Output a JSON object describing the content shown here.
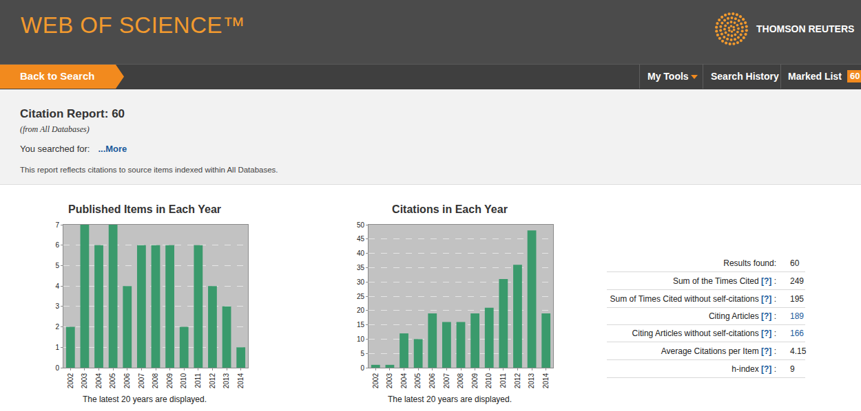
{
  "header": {
    "brand": "WEB OF SCIENCE™",
    "company": "THOMSON REUTERS"
  },
  "nav": {
    "back": "Back to Search",
    "items": [
      "My Tools",
      "Search History",
      "Marked List"
    ],
    "badge": 60
  },
  "report": {
    "title": "Citation Report: 60",
    "subtitle": "(from All Databases)",
    "search_label": "You searched for:",
    "more": "...More",
    "note": "This report reflects citations to source items indexed within All Databases."
  },
  "chart_data": [
    {
      "type": "bar",
      "title": "Published Items in Each Year",
      "categories": [
        "2002",
        "2003",
        "2004",
        "2005",
        "2006",
        "2007",
        "2008",
        "2009",
        "2010",
        "2011",
        "2012",
        "2013",
        "2014"
      ],
      "values": [
        2,
        7,
        6,
        7,
        4,
        6,
        6,
        6,
        2,
        6,
        4,
        3,
        1
      ],
      "color": "#3a9a6c",
      "ylim": [
        0,
        7
      ],
      "yticks": [
        0,
        1,
        2,
        3,
        4,
        5,
        6,
        7
      ],
      "grid": true,
      "note": "The latest 20 years are displayed."
    },
    {
      "type": "bar",
      "title": "Citations in Each Year",
      "categories": [
        "2002",
        "2003",
        "2004",
        "2005",
        "2006",
        "2007",
        "2008",
        "2009",
        "2010",
        "2011",
        "2012",
        "2013",
        "2014"
      ],
      "values": [
        1,
        1,
        12,
        10,
        19,
        16,
        16,
        19,
        21,
        31,
        36,
        48,
        19
      ],
      "color": "#3a9a6c",
      "ylim": [
        0,
        50
      ],
      "yticks": [
        0,
        5,
        10,
        15,
        20,
        25,
        30,
        35,
        40,
        45,
        50
      ],
      "grid": true,
      "note": "The latest 20 years are displayed."
    }
  ],
  "stats": [
    {
      "label": "Results found:",
      "value": 60
    },
    {
      "label": "Sum of the Times Cited",
      "help": "[?]",
      "value": 249
    },
    {
      "label": "Sum of Times Cited without self-citations",
      "help": "[?]",
      "value": 195
    },
    {
      "label": "Citing Articles",
      "help": "[?]",
      "value": 189,
      "link": true
    },
    {
      "label": "Citing Articles without self-citations",
      "help": "[?]",
      "value": 166,
      "link": true
    },
    {
      "label": "Average Citations per Item",
      "help": "[?]",
      "value": 4.15
    },
    {
      "label": "h-index",
      "help": "[?]",
      "value": 9
    }
  ]
}
